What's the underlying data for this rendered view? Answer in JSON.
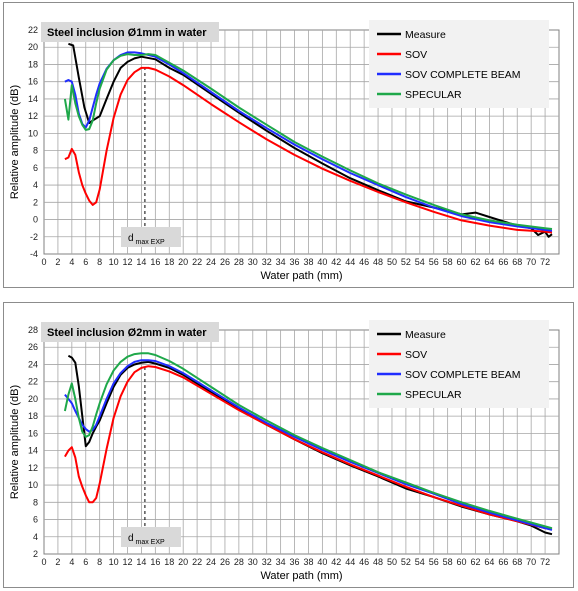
{
  "chart_data": [
    {
      "type": "line",
      "title": "Steel inclusion Ø1mm in water",
      "xlabel": "Water path (mm)",
      "ylabel": "Relative amplitude (dB)",
      "xlim": [
        0,
        74
      ],
      "ylim": [
        -4,
        22
      ],
      "xticks": [
        0,
        2,
        4,
        6,
        8,
        10,
        12,
        14,
        16,
        18,
        20,
        22,
        24,
        26,
        28,
        30,
        32,
        34,
        36,
        38,
        40,
        42,
        44,
        46,
        48,
        50,
        52,
        54,
        56,
        58,
        60,
        62,
        64,
        66,
        68,
        70,
        72
      ],
      "yticks": [
        -4,
        -2,
        0,
        2,
        4,
        6,
        8,
        10,
        12,
        14,
        16,
        18,
        20,
        22
      ],
      "grid": true,
      "legend": "top-right",
      "annotation": {
        "text": "d",
        "subscript": "max EXP",
        "x": 14.5
      },
      "series": [
        {
          "name": "Measure",
          "color": "#000000",
          "x": [
            3.5,
            4.2,
            5,
            5.8,
            6.5,
            7.2,
            8,
            9,
            10,
            11,
            12,
            13,
            14,
            16,
            18,
            20,
            24,
            28,
            32,
            36,
            40,
            44,
            48,
            52,
            56,
            60,
            62,
            64,
            66,
            68,
            70,
            71,
            72,
            72.5,
            73
          ],
          "y": [
            20.4,
            20.2,
            16.5,
            13,
            11.2,
            11.6,
            12,
            14,
            16,
            17.6,
            18.3,
            18.7,
            18.9,
            18.6,
            17.6,
            16.8,
            14.6,
            12.4,
            10.3,
            8.3,
            6.5,
            4.8,
            3.4,
            2.1,
            1.4,
            0.6,
            0.8,
            0.3,
            -0.2,
            -0.7,
            -1.0,
            -1.8,
            -1.4,
            -2.0,
            -1.7
          ]
        },
        {
          "name": "SOV",
          "color": "#ff0000",
          "x": [
            3,
            3.5,
            4,
            4.5,
            5,
            5.5,
            6,
            6.5,
            7,
            7.5,
            8,
            9,
            10,
            11,
            12,
            13,
            14,
            15,
            16,
            18,
            20,
            24,
            28,
            32,
            36,
            40,
            44,
            48,
            52,
            56,
            60,
            64,
            68,
            72,
            73
          ],
          "y": [
            7,
            7.2,
            8.2,
            7.5,
            5.5,
            4,
            3,
            2.2,
            1.7,
            2,
            3.5,
            8,
            11.8,
            14.5,
            16.2,
            17.1,
            17.6,
            17.6,
            17.4,
            16.6,
            15.6,
            13.4,
            11.3,
            9.3,
            7.5,
            5.9,
            4.5,
            3.2,
            2.0,
            0.9,
            -0.1,
            -0.7,
            -1.2,
            -1.4,
            -1.5
          ]
        },
        {
          "name": "SOV COMPLETE BEAM",
          "color": "#1f2dff",
          "x": [
            3,
            3.5,
            4,
            4.5,
            5,
            5.5,
            6,
            6.5,
            7,
            7.5,
            8,
            9,
            10,
            11,
            12,
            13,
            14,
            16,
            18,
            20,
            24,
            28,
            32,
            36,
            40,
            44,
            48,
            52,
            56,
            60,
            64,
            68,
            72,
            73
          ],
          "y": [
            16,
            16.2,
            16,
            14.5,
            12.3,
            11.1,
            10.7,
            11.5,
            13,
            14.5,
            15.8,
            17.5,
            18.5,
            19.1,
            19.4,
            19.4,
            19.3,
            18.9,
            18.0,
            17.0,
            14.8,
            12.6,
            10.6,
            8.7,
            7.0,
            5.4,
            4.0,
            2.6,
            1.4,
            0.4,
            -0.3,
            -0.8,
            -1.2,
            -1.3
          ]
        },
        {
          "name": "SPECULAR",
          "color": "#1fa84a",
          "x": [
            3,
            3.5,
            4,
            4.5,
            5,
            5.5,
            6,
            6.5,
            7,
            7.5,
            8,
            9,
            10,
            11,
            12,
            13,
            14,
            15,
            16,
            18,
            20,
            24,
            28,
            32,
            36,
            40,
            44,
            48,
            52,
            56,
            60,
            64,
            68,
            72,
            73
          ],
          "y": [
            14,
            11.6,
            15.6,
            13.5,
            12,
            11,
            10.4,
            10.5,
            11.5,
            13.5,
            15.2,
            17.4,
            18.5,
            19,
            19.2,
            19.1,
            19.1,
            19.2,
            19.1,
            18.2,
            17.3,
            15.2,
            13.0,
            11.0,
            9.0,
            7.3,
            5.7,
            4.2,
            2.9,
            1.7,
            0.6,
            -0.1,
            -0.6,
            -1.0,
            -1.1
          ]
        }
      ]
    },
    {
      "type": "line",
      "title": "Steel inclusion Ø2mm in water",
      "xlabel": "Water path (mm)",
      "ylabel": "Relative amplitude (dB)",
      "xlim": [
        0,
        74
      ],
      "ylim": [
        2,
        28
      ],
      "xticks": [
        0,
        2,
        4,
        6,
        8,
        10,
        12,
        14,
        16,
        18,
        20,
        22,
        24,
        26,
        28,
        30,
        32,
        34,
        36,
        38,
        40,
        42,
        44,
        46,
        48,
        50,
        52,
        54,
        56,
        58,
        60,
        62,
        64,
        66,
        68,
        70,
        72
      ],
      "yticks": [
        2,
        4,
        6,
        8,
        10,
        12,
        14,
        16,
        18,
        20,
        22,
        24,
        26,
        28
      ],
      "grid": true,
      "legend": "top-right",
      "annotation": {
        "text": "d",
        "subscript": "max EXP",
        "x": 14.5
      },
      "series": [
        {
          "name": "Measure",
          "color": "#000000",
          "x": [
            3.5,
            4,
            4.5,
            5,
            5.5,
            6,
            6.5,
            7,
            7.5,
            8,
            9,
            10,
            11,
            12,
            13,
            14,
            15,
            16,
            18,
            20,
            24,
            28,
            32,
            36,
            40,
            44,
            48,
            52,
            56,
            60,
            64,
            68,
            70,
            72,
            73
          ],
          "y": [
            25,
            24.8,
            24.2,
            21.5,
            18,
            14.5,
            15,
            16,
            16.8,
            17.5,
            19.5,
            21.4,
            22.8,
            23.6,
            24,
            24.2,
            24.3,
            24.1,
            23.6,
            22.8,
            20.8,
            18.8,
            17.0,
            15.3,
            13.7,
            12.3,
            11.0,
            9.6,
            8.6,
            7.5,
            6.6,
            5.8,
            5.3,
            4.5,
            4.3
          ]
        },
        {
          "name": "SOV",
          "color": "#ff0000",
          "x": [
            3,
            3.5,
            4,
            4.5,
            5,
            5.5,
            6,
            6.5,
            7,
            7.5,
            8,
            9,
            10,
            11,
            12,
            13,
            14,
            15,
            16,
            18,
            20,
            24,
            28,
            32,
            36,
            40,
            44,
            48,
            52,
            56,
            60,
            64,
            68,
            72,
            73
          ],
          "y": [
            13.3,
            14,
            14.4,
            13.2,
            11,
            9.8,
            8.8,
            8,
            8,
            8.5,
            10.2,
            14.2,
            17.8,
            20.3,
            22,
            23.1,
            23.6,
            23.8,
            23.7,
            23.2,
            22.5,
            20.6,
            18.7,
            17.0,
            15.3,
            13.8,
            12.4,
            11.1,
            9.8,
            8.6,
            7.6,
            6.6,
            5.8,
            5.0,
            4.9
          ]
        },
        {
          "name": "SOV COMPLETE BEAM",
          "color": "#1f2dff",
          "x": [
            3,
            3.5,
            4,
            4.5,
            5,
            5.5,
            6,
            6.5,
            7,
            7.5,
            8,
            9,
            10,
            11,
            12,
            13,
            14,
            15,
            16,
            18,
            20,
            24,
            28,
            32,
            36,
            40,
            44,
            48,
            52,
            56,
            60,
            64,
            68,
            72,
            73
          ],
          "y": [
            20.5,
            20,
            19.5,
            18.6,
            17.8,
            17,
            16.5,
            16.2,
            16.4,
            17,
            18,
            20,
            21.8,
            23,
            23.8,
            24.3,
            24.5,
            24.5,
            24.4,
            23.8,
            23.0,
            21.0,
            19.0,
            17.2,
            15.6,
            14.1,
            12.7,
            11.4,
            10.1,
            9.0,
            7.8,
            6.8,
            5.9,
            5.0,
            4.8
          ]
        },
        {
          "name": "SPECULAR",
          "color": "#1fa84a",
          "x": [
            3,
            3.5,
            4,
            4.5,
            5,
            5.5,
            6,
            6.5,
            7,
            7.5,
            8,
            9,
            10,
            11,
            12,
            13,
            14,
            15,
            16,
            18,
            20,
            24,
            28,
            32,
            36,
            40,
            44,
            48,
            52,
            56,
            60,
            64,
            68,
            72,
            73
          ],
          "y": [
            18.6,
            20.5,
            21.8,
            20,
            17.8,
            16.2,
            15.6,
            15.8,
            16.8,
            18.2,
            19.5,
            21.7,
            23.3,
            24.3,
            24.9,
            25.2,
            25.3,
            25.3,
            25.1,
            24.4,
            23.5,
            21.4,
            19.3,
            17.5,
            15.8,
            14.3,
            12.9,
            11.5,
            10.3,
            9.1,
            8.0,
            7.0,
            6.1,
            5.2,
            5.0
          ]
        }
      ]
    }
  ]
}
